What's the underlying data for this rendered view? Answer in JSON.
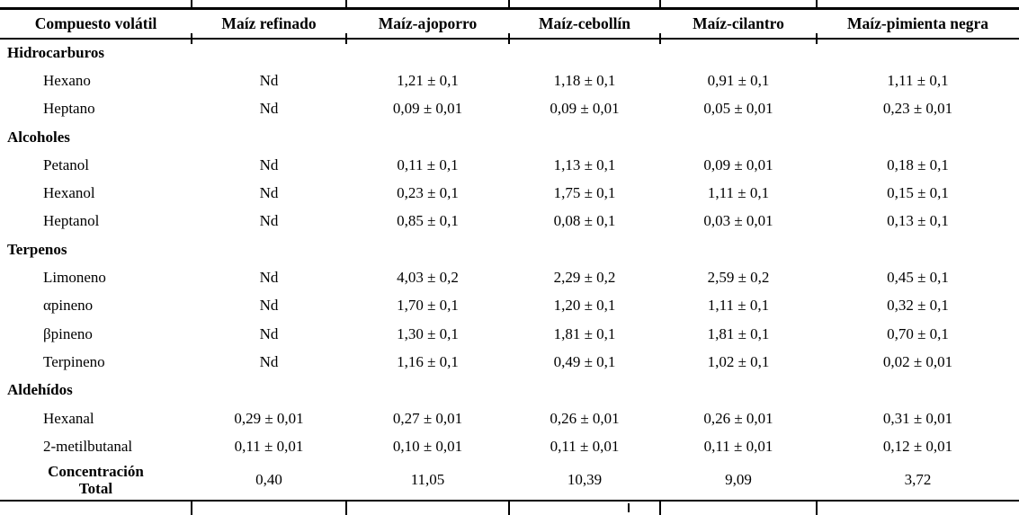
{
  "table": {
    "columns": [
      "Compuesto volátil",
      "Maíz refinado",
      "Maíz-ajoporro",
      "Maíz-cebollín",
      "Maíz-cilantro",
      "Maíz-pimienta negra"
    ],
    "sections": [
      {
        "name": "Hidrocarburos",
        "rows": [
          {
            "compound": "Hexano",
            "values": [
              "Nd",
              "1,21 ± 0,1",
              "1,18 ± 0,1",
              "0,91 ± 0,1",
              "1,11 ± 0,1"
            ]
          },
          {
            "compound": "Heptano",
            "values": [
              "Nd",
              "0,09 ± 0,01",
              "0,09 ± 0,01",
              "0,05 ± 0,01",
              "0,23 ± 0,01"
            ]
          }
        ]
      },
      {
        "name": "Alcoholes",
        "rows": [
          {
            "compound": "Petanol",
            "values": [
              "Nd",
              "0,11 ± 0,1",
              "1,13 ± 0,1",
              "0,09 ± 0,01",
              "0,18 ± 0,1"
            ]
          },
          {
            "compound": "Hexanol",
            "values": [
              "Nd",
              "0,23 ± 0,1",
              "1,75 ± 0,1",
              "1,11 ± 0,1",
              "0,15 ± 0,1"
            ]
          },
          {
            "compound": "Heptanol",
            "values": [
              "Nd",
              "0,85 ± 0,1",
              "0,08 ± 0,1",
              "0,03 ± 0,01",
              "0,13 ± 0,1"
            ]
          }
        ]
      },
      {
        "name": "Terpenos",
        "rows": [
          {
            "compound": "Limoneno",
            "values": [
              "Nd",
              "4,03 ± 0,2",
              "2,29 ± 0,2",
              "2,59 ± 0,2",
              "0,45 ± 0,1"
            ]
          },
          {
            "compound": "αpineno",
            "values": [
              "Nd",
              "1,70 ± 0,1",
              "1,20 ± 0,1",
              "1,11 ± 0,1",
              "0,32 ± 0,1"
            ]
          },
          {
            "compound": "βpineno",
            "values": [
              "Nd",
              "1,30 ± 0,1",
              "1,81 ± 0,1",
              "1,81 ± 0,1",
              "0,70 ± 0,1"
            ]
          },
          {
            "compound": "Terpineno",
            "values": [
              "Nd",
              "1,16 ± 0,1",
              "0,49 ± 0,1",
              "1,02 ± 0,1",
              "0,02 ± 0,01"
            ]
          }
        ]
      },
      {
        "name": "Aldehídos",
        "rows": [
          {
            "compound": "Hexanal",
            "values": [
              "0,29 ± 0,01",
              "0,27 ± 0,01",
              "0,26 ± 0,01",
              "0,26 ± 0,01",
              "0,31 ± 0,01"
            ]
          },
          {
            "compound": "2-metilbutanal",
            "values": [
              "0,11 ± 0,01",
              "0,10 ± 0,01",
              "0,11 ± 0,01",
              "0,11 ± 0,01",
              "0,12 ± 0,01"
            ]
          }
        ]
      }
    ],
    "total_row": {
      "label_line1": "Concentración",
      "label_line2": "Total",
      "values": [
        "0,40",
        "11,05",
        "10,39",
        "9,09",
        "3,72"
      ]
    }
  },
  "colors": {
    "text": "#000000",
    "border": "#000000",
    "background": "#ffffff"
  }
}
